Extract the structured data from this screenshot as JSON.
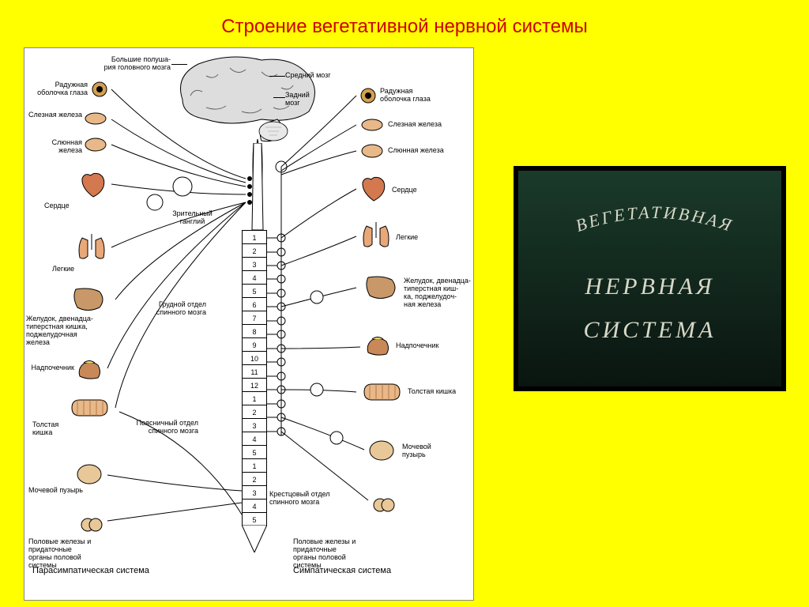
{
  "title": "Строение вегетативной нервной системы",
  "sidePanel": {
    "line1": "ВЕГЕТАТИВНАЯ",
    "line2": "НЕРВНАЯ",
    "line3": "СИСТЕМА",
    "bg_gradient_top": "#1a3a2a",
    "bg_gradient_bottom": "#0a1510",
    "text_color": "#d8d8c8",
    "border_color": "#000000"
  },
  "brain_labels": {
    "hemispheres": "Большие полуша-\nрия головного мозга",
    "midbrain": "Средний мозг",
    "hindbrain": "Задний\nмозг"
  },
  "spinal_regions": {
    "thoracic": "Грудной отдел\nспинного мозга",
    "lumbar": "Поясничный отдел\nспинного мозга",
    "sacral": "Крестцовый отдел\nспинного мозга",
    "visual_ganglion": "Зрительный\nганглий"
  },
  "systems": {
    "parasympathetic": "Парасимпатическая система",
    "sympathetic": "Симпатическая система"
  },
  "organs": {
    "iris": "Радужная\nоболочка глаза",
    "lacrimal": "Слезная железа",
    "salivary": "Слюнная железа",
    "heart": "Сердце",
    "lungs": "Легкие",
    "stomach": "Желудок, двенадца-\nтиперстная кишка,\nподжелудочная железа",
    "stomach_r": "Желудок, двенадца-\nтиперстная киш-\nка, поджелудоч-\nная железа",
    "adrenal": "Надпочечник",
    "large_intestine": "Толстая\nкишка",
    "large_intestine_r": "Толстая кишка",
    "bladder": "Мочевой пузырь",
    "bladder_r": "Мочевой\nпузырь",
    "gonads": "Половые железы и придаточные\nорганы половой системы",
    "gonads_r": "Половые железы и придаточные\nорганы половой системы"
  },
  "thoracic_segments": [
    "1",
    "2",
    "3",
    "4",
    "5",
    "6",
    "7",
    "8",
    "9",
    "10",
    "11",
    "12"
  ],
  "lumbar_segments": [
    "1",
    "2",
    "3",
    "4",
    "5"
  ],
  "sacral_segments": [
    "1",
    "2",
    "3",
    "4",
    "5"
  ],
  "colors": {
    "page_bg": "#ffff00",
    "title_color": "#cc0000",
    "diagram_bg": "#ffffff",
    "organ_tint": "#e8a878",
    "brain_tint": "#d0d0d0"
  }
}
